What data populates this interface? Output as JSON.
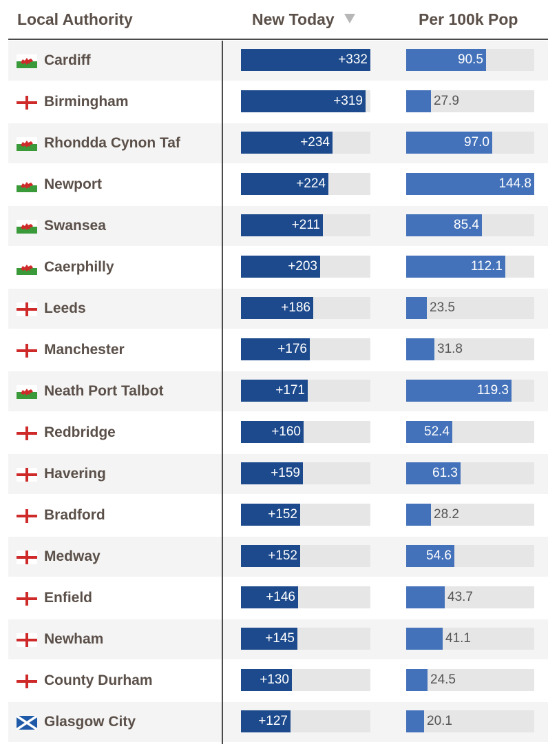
{
  "header": {
    "col_authority": "Local Authority",
    "col_new_today": "New Today",
    "col_per100k": "Per 100k Pop",
    "sort_icon": "sort-down-triangle-icon"
  },
  "colors": {
    "new_today_bar": "#1c4a8c",
    "per100k_bar": "#4472ba",
    "track": "#e6e6e6",
    "text": "#5b5049"
  },
  "chart_data": {
    "type": "table",
    "new_today_max": 332,
    "per100k_max": 144.8,
    "rows": [
      {
        "name": "Cardiff",
        "flag": "wales",
        "new_today": 332,
        "new_label": "+332",
        "per100k": 90.5,
        "per_label": "90.5"
      },
      {
        "name": "Birmingham",
        "flag": "england",
        "new_today": 319,
        "new_label": "+319",
        "per100k": 27.9,
        "per_label": "27.9"
      },
      {
        "name": "Rhondda Cynon Taf",
        "flag": "wales",
        "new_today": 234,
        "new_label": "+234",
        "per100k": 97.0,
        "per_label": "97.0"
      },
      {
        "name": "Newport",
        "flag": "wales",
        "new_today": 224,
        "new_label": "+224",
        "per100k": 144.8,
        "per_label": "144.8"
      },
      {
        "name": "Swansea",
        "flag": "wales",
        "new_today": 211,
        "new_label": "+211",
        "per100k": 85.4,
        "per_label": "85.4"
      },
      {
        "name": "Caerphilly",
        "flag": "wales",
        "new_today": 203,
        "new_label": "+203",
        "per100k": 112.1,
        "per_label": "112.1"
      },
      {
        "name": "Leeds",
        "flag": "england",
        "new_today": 186,
        "new_label": "+186",
        "per100k": 23.5,
        "per_label": "23.5"
      },
      {
        "name": "Manchester",
        "flag": "england",
        "new_today": 176,
        "new_label": "+176",
        "per100k": 31.8,
        "per_label": "31.8"
      },
      {
        "name": "Neath Port Talbot",
        "flag": "wales",
        "new_today": 171,
        "new_label": "+171",
        "per100k": 119.3,
        "per_label": "119.3"
      },
      {
        "name": "Redbridge",
        "flag": "england",
        "new_today": 160,
        "new_label": "+160",
        "per100k": 52.4,
        "per_label": "52.4"
      },
      {
        "name": "Havering",
        "flag": "england",
        "new_today": 159,
        "new_label": "+159",
        "per100k": 61.3,
        "per_label": "61.3"
      },
      {
        "name": "Bradford",
        "flag": "england",
        "new_today": 152,
        "new_label": "+152",
        "per100k": 28.2,
        "per_label": "28.2"
      },
      {
        "name": "Medway",
        "flag": "england",
        "new_today": 152,
        "new_label": "+152",
        "per100k": 54.6,
        "per_label": "54.6"
      },
      {
        "name": "Enfield",
        "flag": "england",
        "new_today": 146,
        "new_label": "+146",
        "per100k": 43.7,
        "per_label": "43.7"
      },
      {
        "name": "Newham",
        "flag": "england",
        "new_today": 145,
        "new_label": "+145",
        "per100k": 41.1,
        "per_label": "41.1"
      },
      {
        "name": "County Durham",
        "flag": "england",
        "new_today": 130,
        "new_label": "+130",
        "per100k": 24.5,
        "per_label": "24.5"
      },
      {
        "name": "Glasgow City",
        "flag": "scotland",
        "new_today": 127,
        "new_label": "+127",
        "per100k": 20.1,
        "per_label": "20.1"
      }
    ]
  }
}
